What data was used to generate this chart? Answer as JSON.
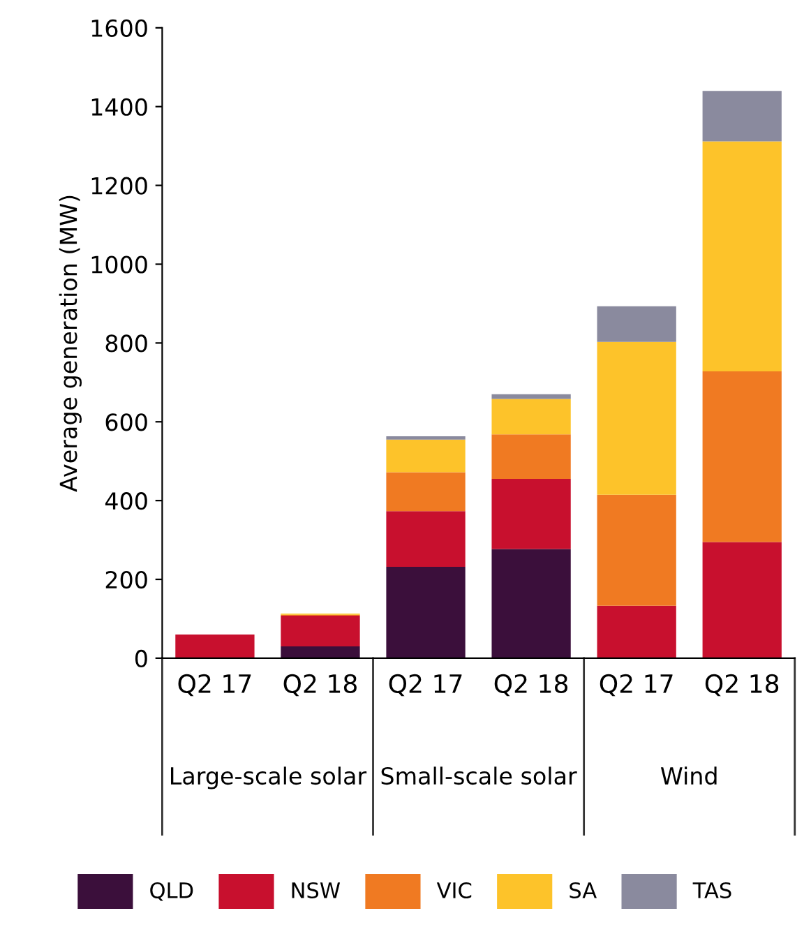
{
  "chart_data": {
    "type": "bar",
    "stacked": true,
    "ylabel": "Average generation (MW)",
    "categories": [
      "Q2 17",
      "Q2 18",
      "Q2 17",
      "Q2 18",
      "Q2 17",
      "Q2 18"
    ],
    "series": [
      {
        "name": "QLD",
        "color": "#3b0f3b",
        "values": [
          null,
          30,
          232,
          277,
          0,
          0
        ]
      },
      {
        "name": "NSW",
        "color": "#c8102e",
        "values": [
          60,
          78,
          141,
          178,
          133,
          295
        ]
      },
      {
        "name": "VIC",
        "color": "#f07a22",
        "values": [
          0,
          2,
          99,
          113,
          282,
          433
        ]
      },
      {
        "name": "SA",
        "color": "#fdc32a",
        "values": [
          0,
          3,
          83,
          90,
          388,
          584
        ]
      },
      {
        "name": "TAS",
        "color": "#8a8a9e",
        "values": [
          0,
          0,
          8,
          12,
          90,
          128
        ]
      }
    ],
    "annotations": [
      "Large-scale solar",
      "Small-scale solar",
      "Wind"
    ],
    "ylim": [
      0,
      1600
    ],
    "yticks": [
      0,
      200,
      400,
      600,
      800,
      1000,
      1200,
      1400,
      1600
    ],
    "grid": false,
    "legend": "bottom"
  }
}
